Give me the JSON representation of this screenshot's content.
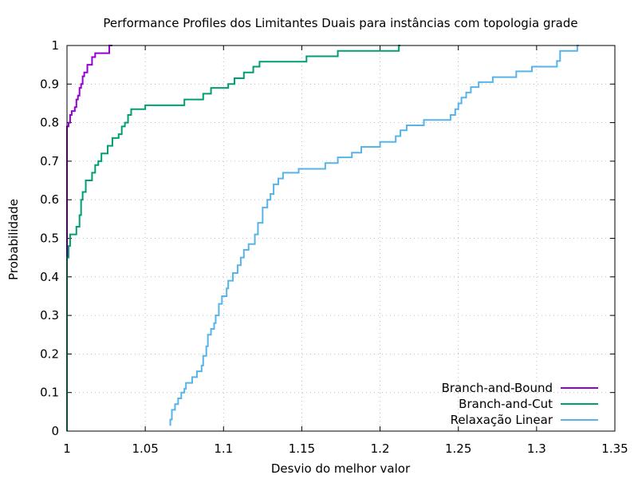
{
  "chart_data": {
    "type": "line",
    "title": "Performance Profiles dos Limitantes Duais para instâncias com topologia grade",
    "xlabel": "Desvio do melhor valor",
    "ylabel": "Probabilidade",
    "xlim": [
      1,
      1.35
    ],
    "ylim": [
      0,
      1
    ],
    "xticks": [
      "1",
      "1.05",
      "1.1",
      "1.15",
      "1.2",
      "1.25",
      "1.3",
      "1.35"
    ],
    "xtick_values": [
      1,
      1.05,
      1.1,
      1.15,
      1.2,
      1.25,
      1.3,
      1.35
    ],
    "yticks": [
      "0",
      "0.1",
      "0.2",
      "0.3",
      "0.4",
      "0.5",
      "0.6",
      "0.7",
      "0.8",
      "0.9",
      "1"
    ],
    "ytick_values": [
      0,
      0.1,
      0.2,
      0.3,
      0.4,
      0.5,
      0.6,
      0.7,
      0.8,
      0.9,
      1
    ],
    "grid": true,
    "legend_position": "bottom-right",
    "series": [
      {
        "name": "Branch-and-Bound",
        "color": "#9400d3",
        "step": true,
        "points": [
          [
            1.0,
            0.0
          ],
          [
            1.0,
            0.79
          ],
          [
            1.001,
            0.79
          ],
          [
            1.001,
            0.8
          ],
          [
            1.002,
            0.8
          ],
          [
            1.002,
            0.82
          ],
          [
            1.003,
            0.82
          ],
          [
            1.003,
            0.83
          ],
          [
            1.005,
            0.83
          ],
          [
            1.005,
            0.84
          ],
          [
            1.006,
            0.84
          ],
          [
            1.006,
            0.86
          ],
          [
            1.007,
            0.86
          ],
          [
            1.007,
            0.87
          ],
          [
            1.008,
            0.87
          ],
          [
            1.008,
            0.89
          ],
          [
            1.009,
            0.89
          ],
          [
            1.009,
            0.9
          ],
          [
            1.01,
            0.9
          ],
          [
            1.01,
            0.92
          ],
          [
            1.011,
            0.92
          ],
          [
            1.011,
            0.93
          ],
          [
            1.013,
            0.93
          ],
          [
            1.013,
            0.95
          ],
          [
            1.016,
            0.95
          ],
          [
            1.016,
            0.97
          ],
          [
            1.018,
            0.97
          ],
          [
            1.018,
            0.98
          ],
          [
            1.027,
            0.98
          ],
          [
            1.027,
            1.0
          ],
          [
            1.029,
            1.0
          ]
        ]
      },
      {
        "name": "Branch-and-Cut",
        "color": "#009e73",
        "step": true,
        "points": [
          [
            1.0,
            0.0
          ],
          [
            1.0,
            0.45
          ],
          [
            1.001,
            0.45
          ],
          [
            1.001,
            0.48
          ],
          [
            1.002,
            0.48
          ],
          [
            1.002,
            0.51
          ],
          [
            1.006,
            0.51
          ],
          [
            1.006,
            0.53
          ],
          [
            1.008,
            0.53
          ],
          [
            1.008,
            0.56
          ],
          [
            1.009,
            0.56
          ],
          [
            1.009,
            0.6
          ],
          [
            1.01,
            0.6
          ],
          [
            1.01,
            0.62
          ],
          [
            1.012,
            0.62
          ],
          [
            1.012,
            0.65
          ],
          [
            1.016,
            0.65
          ],
          [
            1.016,
            0.67
          ],
          [
            1.018,
            0.67
          ],
          [
            1.018,
            0.69
          ],
          [
            1.02,
            0.69
          ],
          [
            1.02,
            0.7
          ],
          [
            1.022,
            0.7
          ],
          [
            1.022,
            0.72
          ],
          [
            1.026,
            0.72
          ],
          [
            1.026,
            0.74
          ],
          [
            1.029,
            0.74
          ],
          [
            1.029,
            0.76
          ],
          [
            1.033,
            0.76
          ],
          [
            1.033,
            0.77
          ],
          [
            1.035,
            0.77
          ],
          [
            1.035,
            0.79
          ],
          [
            1.037,
            0.79
          ],
          [
            1.037,
            0.8
          ],
          [
            1.039,
            0.8
          ],
          [
            1.039,
            0.82
          ],
          [
            1.041,
            0.82
          ],
          [
            1.041,
            0.835
          ],
          [
            1.05,
            0.835
          ],
          [
            1.05,
            0.845
          ],
          [
            1.075,
            0.845
          ],
          [
            1.075,
            0.86
          ],
          [
            1.087,
            0.86
          ],
          [
            1.087,
            0.875
          ],
          [
            1.092,
            0.875
          ],
          [
            1.092,
            0.89
          ],
          [
            1.103,
            0.89
          ],
          [
            1.103,
            0.9
          ],
          [
            1.107,
            0.9
          ],
          [
            1.107,
            0.915
          ],
          [
            1.113,
            0.915
          ],
          [
            1.113,
            0.93
          ],
          [
            1.119,
            0.93
          ],
          [
            1.119,
            0.945
          ],
          [
            1.123,
            0.945
          ],
          [
            1.123,
            0.958
          ],
          [
            1.153,
            0.958
          ],
          [
            1.153,
            0.972
          ],
          [
            1.173,
            0.972
          ],
          [
            1.173,
            0.986
          ],
          [
            1.212,
            0.986
          ],
          [
            1.212,
            1.0
          ],
          [
            1.213,
            1.0
          ]
        ]
      },
      {
        "name": "Relaxação Linear",
        "color": "#56b4e9",
        "step": true,
        "points": [
          [
            1.066,
            0.014
          ],
          [
            1.066,
            0.03
          ],
          [
            1.067,
            0.03
          ],
          [
            1.067,
            0.055
          ],
          [
            1.069,
            0.055
          ],
          [
            1.069,
            0.07
          ],
          [
            1.071,
            0.07
          ],
          [
            1.071,
            0.085
          ],
          [
            1.073,
            0.085
          ],
          [
            1.073,
            0.1
          ],
          [
            1.075,
            0.1
          ],
          [
            1.075,
            0.11
          ],
          [
            1.076,
            0.11
          ],
          [
            1.076,
            0.125
          ],
          [
            1.08,
            0.125
          ],
          [
            1.08,
            0.14
          ],
          [
            1.083,
            0.14
          ],
          [
            1.083,
            0.155
          ],
          [
            1.086,
            0.155
          ],
          [
            1.086,
            0.17
          ],
          [
            1.087,
            0.17
          ],
          [
            1.087,
            0.195
          ],
          [
            1.089,
            0.195
          ],
          [
            1.089,
            0.22
          ],
          [
            1.09,
            0.22
          ],
          [
            1.09,
            0.25
          ],
          [
            1.092,
            0.25
          ],
          [
            1.092,
            0.265
          ],
          [
            1.094,
            0.265
          ],
          [
            1.094,
            0.28
          ],
          [
            1.095,
            0.28
          ],
          [
            1.095,
            0.3
          ],
          [
            1.097,
            0.3
          ],
          [
            1.097,
            0.33
          ],
          [
            1.099,
            0.33
          ],
          [
            1.099,
            0.35
          ],
          [
            1.102,
            0.35
          ],
          [
            1.102,
            0.37
          ],
          [
            1.103,
            0.37
          ],
          [
            1.103,
            0.39
          ],
          [
            1.106,
            0.39
          ],
          [
            1.106,
            0.41
          ],
          [
            1.109,
            0.41
          ],
          [
            1.109,
            0.43
          ],
          [
            1.111,
            0.43
          ],
          [
            1.111,
            0.45
          ],
          [
            1.113,
            0.45
          ],
          [
            1.113,
            0.47
          ],
          [
            1.116,
            0.47
          ],
          [
            1.116,
            0.485
          ],
          [
            1.12,
            0.485
          ],
          [
            1.12,
            0.51
          ],
          [
            1.122,
            0.51
          ],
          [
            1.122,
            0.54
          ],
          [
            1.125,
            0.54
          ],
          [
            1.125,
            0.58
          ],
          [
            1.128,
            0.58
          ],
          [
            1.128,
            0.6
          ],
          [
            1.13,
            0.6
          ],
          [
            1.13,
            0.615
          ],
          [
            1.132,
            0.615
          ],
          [
            1.132,
            0.64
          ],
          [
            1.135,
            0.64
          ],
          [
            1.135,
            0.655
          ],
          [
            1.138,
            0.655
          ],
          [
            1.138,
            0.67
          ],
          [
            1.148,
            0.67
          ],
          [
            1.148,
            0.68
          ],
          [
            1.165,
            0.68
          ],
          [
            1.165,
            0.695
          ],
          [
            1.173,
            0.695
          ],
          [
            1.173,
            0.71
          ],
          [
            1.182,
            0.71
          ],
          [
            1.182,
            0.722
          ],
          [
            1.188,
            0.722
          ],
          [
            1.188,
            0.737
          ],
          [
            1.2,
            0.737
          ],
          [
            1.2,
            0.75
          ],
          [
            1.21,
            0.75
          ],
          [
            1.21,
            0.765
          ],
          [
            1.213,
            0.765
          ],
          [
            1.213,
            0.78
          ],
          [
            1.217,
            0.78
          ],
          [
            1.217,
            0.793
          ],
          [
            1.228,
            0.793
          ],
          [
            1.228,
            0.807
          ],
          [
            1.245,
            0.807
          ],
          [
            1.245,
            0.82
          ],
          [
            1.248,
            0.82
          ],
          [
            1.248,
            0.835
          ],
          [
            1.25,
            0.835
          ],
          [
            1.25,
            0.85
          ],
          [
            1.252,
            0.85
          ],
          [
            1.252,
            0.865
          ],
          [
            1.255,
            0.865
          ],
          [
            1.255,
            0.878
          ],
          [
            1.258,
            0.878
          ],
          [
            1.258,
            0.892
          ],
          [
            1.263,
            0.892
          ],
          [
            1.263,
            0.905
          ],
          [
            1.272,
            0.905
          ],
          [
            1.272,
            0.918
          ],
          [
            1.287,
            0.918
          ],
          [
            1.287,
            0.933
          ],
          [
            1.297,
            0.933
          ],
          [
            1.297,
            0.945
          ],
          [
            1.313,
            0.945
          ],
          [
            1.313,
            0.96
          ],
          [
            1.315,
            0.96
          ],
          [
            1.315,
            0.986
          ],
          [
            1.326,
            0.986
          ],
          [
            1.326,
            1.0
          ],
          [
            1.327,
            1.0
          ]
        ]
      }
    ]
  }
}
